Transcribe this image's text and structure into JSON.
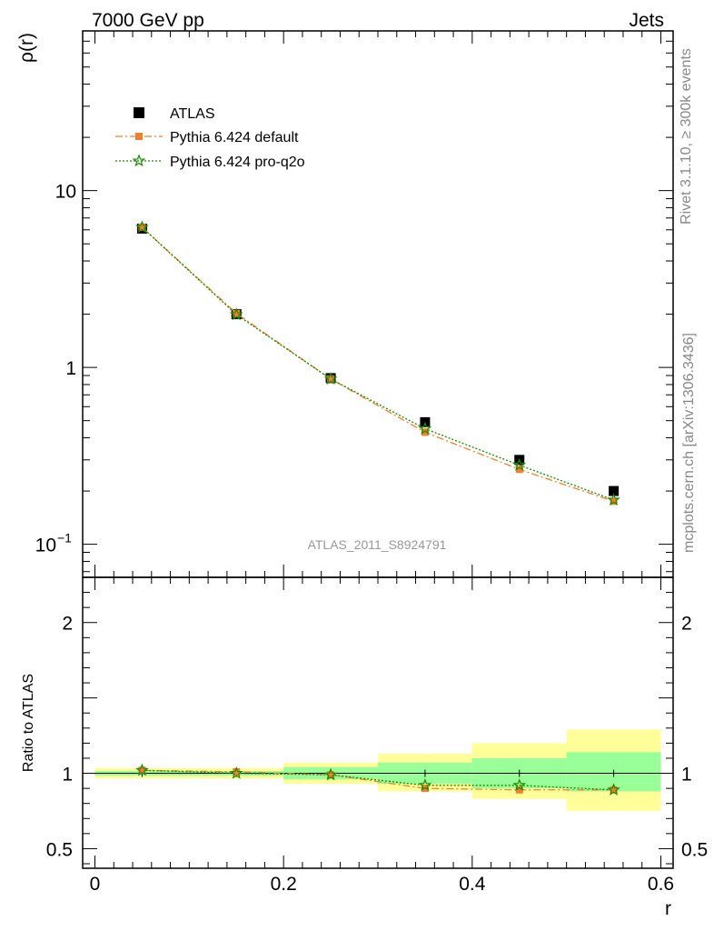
{
  "header": {
    "energy_label": "7000 GeV pp",
    "category_label": "Jets"
  },
  "side": {
    "rivet_label": "Rivet 3.1.10, ≥ 300k events",
    "mcplots_label": "mcplots.cern.ch [arXiv:1306.3436]"
  },
  "chart_data": {
    "type": "line",
    "analysis_label": "ATLAS_2011_S8924791",
    "main": {
      "ylabel": "ρ(r)",
      "yscale": "log",
      "ylim": [
        0.065,
        80
      ],
      "ytick_labels": [
        "10",
        "1"
      ],
      "ytick_neg_base": "10",
      "ytick_neg_exp": "−1"
    },
    "ratio": {
      "ylabel": "Ratio to ATLAS",
      "ylim": [
        0.37,
        2.3
      ],
      "ytick_labels_left": [
        "2",
        "1",
        "0.5"
      ],
      "ytick_labels_right": [
        "2",
        "1",
        "0.5"
      ]
    },
    "xlabel": "r",
    "xlim": [
      -0.013,
      0.613
    ],
    "xtick_labels": [
      "0",
      "0.2",
      "0.4",
      "0.6"
    ],
    "bins": [
      [
        0.0,
        0.1
      ],
      [
        0.1,
        0.2
      ],
      [
        0.2,
        0.3
      ],
      [
        0.3,
        0.4
      ],
      [
        0.4,
        0.5
      ],
      [
        0.5,
        0.6
      ]
    ],
    "x": [
      0.05,
      0.15,
      0.25,
      0.35,
      0.45,
      0.55
    ],
    "series": [
      {
        "name": "ATLAS",
        "color": "#000000",
        "marker": "square",
        "values": [
          6.1,
          2.0,
          0.87,
          0.49,
          0.3,
          0.2
        ]
      },
      {
        "name": "Pythia 6.424 default",
        "color": "#f08030",
        "marker": "square",
        "values": [
          6.2,
          2.02,
          0.86,
          0.43,
          0.265,
          0.175
        ]
      },
      {
        "name": "Pythia 6.424 pro-q2o",
        "color": "#1a8a00",
        "marker": "star",
        "values": [
          6.2,
          1.99,
          0.86,
          0.45,
          0.28,
          0.178
        ]
      }
    ],
    "ratio_series": [
      {
        "name": "Pythia 6.424 default",
        "values": [
          1.02,
          1.01,
          0.99,
          0.9,
          0.89,
          0.89
        ]
      },
      {
        "name": "Pythia 6.424 pro-q2o",
        "values": [
          1.02,
          1.0,
          0.99,
          0.92,
          0.92,
          0.89
        ]
      }
    ],
    "band_stat": {
      "lo": [
        0.985,
        0.985,
        0.96,
        0.93,
        0.9,
        0.88
      ],
      "hi": [
        1.015,
        1.015,
        1.04,
        1.07,
        1.1,
        1.14
      ]
    },
    "band_total": {
      "lo": [
        0.965,
        0.965,
        0.93,
        0.88,
        0.83,
        0.75
      ],
      "hi": [
        1.035,
        1.035,
        1.07,
        1.13,
        1.2,
        1.29
      ]
    },
    "band_colors": {
      "stat": "#99ff99",
      "total": "#ffff99"
    }
  }
}
